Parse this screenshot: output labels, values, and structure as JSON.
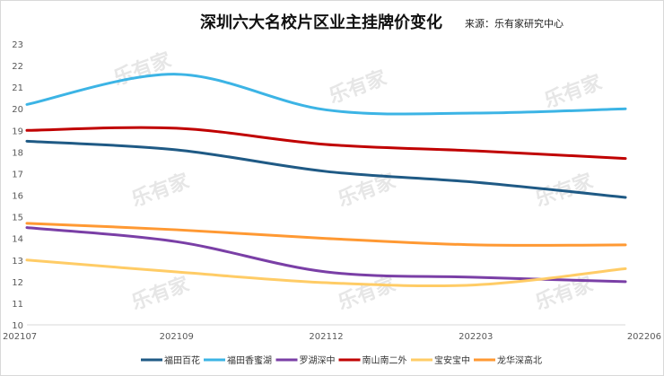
{
  "chart_data": {
    "type": "line",
    "title": "深圳六大名校片区业主挂牌价变化",
    "subtitle": "来源：乐有家研究中心",
    "watermark": "乐有家",
    "xlabel": "",
    "ylabel": "",
    "categories": [
      "202107",
      "202109",
      "202112",
      "202203",
      "202206"
    ],
    "yticks": [
      10,
      11,
      12,
      13,
      14,
      15,
      16,
      17,
      18,
      19,
      20,
      21,
      22,
      23
    ],
    "ylim": [
      10,
      23
    ],
    "grid": false,
    "legend_position": "bottom",
    "series": [
      {
        "name": "福田百花",
        "color": "#1f5a85",
        "values": [
          18.5,
          18.1,
          17.1,
          16.6,
          15.9
        ]
      },
      {
        "name": "福田香蜜湖",
        "color": "#3cb4e5",
        "values": [
          20.2,
          21.6,
          19.95,
          19.8,
          20.0
        ]
      },
      {
        "name": "罗湖深中",
        "color": "#7a3fa6",
        "values": [
          14.5,
          13.85,
          12.45,
          12.2,
          12.0
        ]
      },
      {
        "name": "南山南二外",
        "color": "#c00000",
        "values": [
          19.0,
          19.1,
          18.35,
          18.05,
          17.7
        ]
      },
      {
        "name": "宝安宝中",
        "color": "#ffcc66",
        "values": [
          13.0,
          12.45,
          11.95,
          11.85,
          12.6
        ]
      },
      {
        "name": "龙华深高北",
        "color": "#ff9933",
        "values": [
          14.7,
          14.4,
          14.0,
          13.7,
          13.7
        ]
      }
    ]
  }
}
